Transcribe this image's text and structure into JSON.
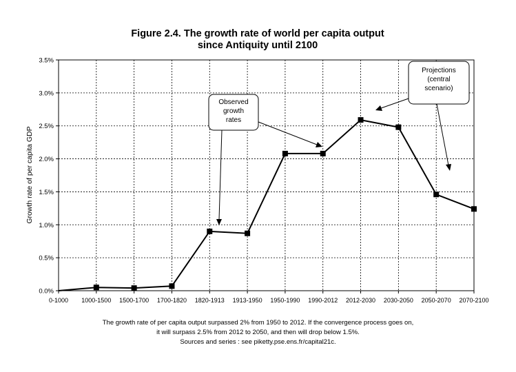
{
  "chart_data": {
    "type": "line",
    "title": [
      "Figure 2.4. The growth rate of world per capita output",
      "since Antiquity until 2100"
    ],
    "ylabel": "Growth rate of per capita GDP",
    "xlabel": "",
    "categories": [
      "0-1000",
      "1000-1500",
      "1500-1700",
      "1700-1820",
      "1820-1913",
      "1913-1950",
      "1950-1990",
      "1990-2012",
      "2012-2030",
      "2030-2050",
      "2050-2070",
      "2070-2100"
    ],
    "values": [
      0.0,
      0.05,
      0.04,
      0.07,
      0.9,
      0.87,
      2.08,
      2.08,
      2.59,
      2.48,
      1.46,
      1.24
    ],
    "ylim": [
      0,
      3.5
    ],
    "yticks": [
      "0.0%",
      "0.5%",
      "1.0%",
      "1.5%",
      "2.0%",
      "2.5%",
      "3.0%",
      "3.5%"
    ],
    "grid": true,
    "annotations": {
      "observed": [
        "Observed",
        "growth",
        "rates"
      ],
      "projections": [
        "Projections",
        "(central",
        "scenario)"
      ]
    }
  },
  "caption": {
    "line1": "The growth rate of per capita output surpassed 2% from 1950 to 2012. If the convergence process goes on,",
    "line2": "it will surpass 2.5% from 2012 to 2050, and then will drop below 1.5%.",
    "line3": "Sources and series : see piketty.pse.ens.fr/capital21c."
  }
}
